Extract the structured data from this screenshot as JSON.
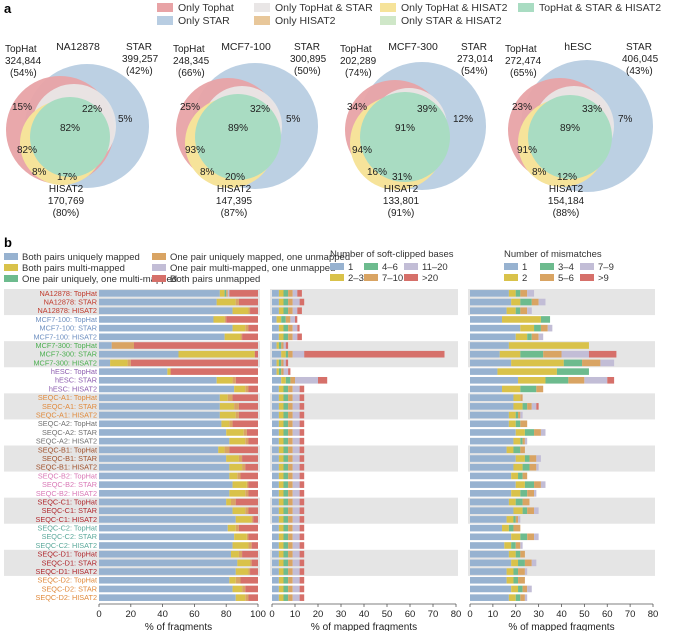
{
  "panels": {
    "a": "a",
    "b": "b"
  },
  "colors": {
    "tophat": "#e8a3a6",
    "star": "#b8cde2",
    "hisat2": "#f6e39a",
    "tophat_star": "#e9e6e6",
    "tophat_hisat2": "#e8c79a",
    "star_hisat2": "#cfe7c8",
    "all": "#a9dcc2",
    "uniq": "#97b2d0",
    "multi": "#d9c24a",
    "one_uniq_multi": "#6dbb8e",
    "uniq_unmapped": "#d9a463",
    "multi_unmapped": "#c2bdd6",
    "both_unmapped": "#d6706a",
    "bin1": "#97b2d0",
    "bin2": "#d9c24a",
    "bin3": "#6dbb8e",
    "bin4": "#d9a463",
    "bin5": "#c2bdd6",
    "bin6": "#d6706a",
    "row_shade": "#e5e5e5"
  },
  "legend_a": [
    "Only Tophat",
    "Only TopHat & STAR",
    "Only TopHat & HISAT2",
    "TopHat & STAR & HISAT2",
    "Only STAR",
    "Only HISAT2",
    "Only STAR & HISAT2"
  ],
  "chart_data": [
    {
      "type": "venn",
      "title": "NA12878",
      "tophat": {
        "label": "TopHat",
        "count": "324,844",
        "pct": "(54%)"
      },
      "star": {
        "label": "STAR",
        "count": "399,257",
        "pct": "(42%)"
      },
      "hisat2": {
        "label": "HISAT2",
        "count": "170,769",
        "pct": "(80%)"
      },
      "region_labels": {
        "tophat_only": "15%",
        "tophat_star": "22%",
        "star_only": "5%",
        "all": "82%",
        "tophat_hisat2": "82%",
        "hisat2_only": "8%",
        "star_hisat2": "17%"
      }
    },
    {
      "type": "venn",
      "title": "MCF7-100",
      "tophat": {
        "label": "TopHat",
        "count": "248,345",
        "pct": "(66%)"
      },
      "star": {
        "label": "STAR",
        "count": "300,895",
        "pct": "(50%)"
      },
      "hisat2": {
        "label": "HISAT2",
        "count": "147,395",
        "pct": "(87%)"
      },
      "region_labels": {
        "tophat_only": "25%",
        "tophat_star": "32%",
        "star_only": "5%",
        "all": "89%",
        "tophat_hisat2": "93%",
        "hisat2_only": "8%",
        "star_hisat2": "20%"
      }
    },
    {
      "type": "venn",
      "title": "MCF7-300",
      "tophat": {
        "label": "TopHat",
        "count": "202,289",
        "pct": "(74%)"
      },
      "star": {
        "label": "STAR",
        "count": "273,014",
        "pct": "(54%)"
      },
      "hisat2": {
        "label": "HISAT2",
        "count": "133,801",
        "pct": "(91%)"
      },
      "region_labels": {
        "tophat_only": "34%",
        "tophat_star": "39%",
        "star_only": "12%",
        "all": "91%",
        "tophat_hisat2": "94%",
        "hisat2_only": "16%",
        "star_hisat2": "31%"
      }
    },
    {
      "type": "venn",
      "title": "hESC",
      "tophat": {
        "label": "TopHat",
        "count": "272,474",
        "pct": "(65%)"
      },
      "star": {
        "label": "STAR",
        "count": "406,045",
        "pct": "(43%)"
      },
      "hisat2": {
        "label": "HISAT2",
        "count": "154,184",
        "pct": "(88%)"
      },
      "region_labels": {
        "tophat_only": "23%",
        "tophat_star": "33%",
        "star_only": "7%",
        "all": "89%",
        "tophat_hisat2": "91%",
        "hisat2_only": "8%",
        "star_hisat2": "12%"
      }
    },
    {
      "type": "bar",
      "stacked": true,
      "orientation": "horizontal",
      "xlabel": "% of fragments",
      "xlim": [
        0,
        100
      ],
      "xticks": [
        "0",
        "20",
        "40",
        "60",
        "80",
        "100"
      ],
      "legend": [
        "Both pairs uniquely mapped",
        "Both pairs multi-mapped",
        "One pair uniquely, one multi-mapped",
        "One pair uniquely mapped, one unmapped",
        "One pair multi-mapped, one unmapped",
        "Both pairs unmapped"
      ],
      "categories": [
        "NA12878: TopHat",
        "NA12878: STAR",
        "NA12878: HISAT2",
        "MCF7-100: TopHat",
        "MCF7-100: STAR",
        "MCF7-100: HISAT2",
        "MCF7-300: TopHat",
        "MCF7-300: STAR",
        "MCF7-300: HISAT2",
        "hESC: TopHat",
        "hESC: STAR",
        "hESC: HISAT2",
        "SEQC-A1: TopHat",
        "SEQC-A1: STAR",
        "SEQC-A1: HISAT2",
        "SEQC-A2: TopHat",
        "SEQC-A2: STAR",
        "SEQC-A2: HISAT2",
        "SEQC-B1: TopHat",
        "SEQC-B1: STAR",
        "SEQC-B1: HISAT2",
        "SEQC-B2: TopHat",
        "SEQC-B2: STAR",
        "SEQC-B2: HISAT2",
        "SEQC-C1: TopHat",
        "SEQC-C1: STAR",
        "SEQC-C1: HISAT2",
        "SEQC-C2: TopHat",
        "SEQC-C2: STAR",
        "SEQC-C2: HISAT2",
        "SEQC-D1: TopHat",
        "SEQC-D1: STAR",
        "SEQC-D1: HISAT2",
        "SEQC-D2: TopHat",
        "SEQC-D2: STAR",
        "SEQC-D2: HISAT2"
      ],
      "category_colors": [
        "#c0392b",
        "#c0392b",
        "#c0392b",
        "#6d8fc0",
        "#6d8fc0",
        "#6d8fc0",
        "#4caf50",
        "#4caf50",
        "#4caf50",
        "#8e5fb0",
        "#8e5fb0",
        "#8e5fb0",
        "#e08a3c",
        "#e08a3c",
        "#e08a3c",
        "#707070",
        "#707070",
        "#707070",
        "#a0522d",
        "#a0522d",
        "#a0522d",
        "#d978b6",
        "#d978b6",
        "#d978b6",
        "#b0282e",
        "#b0282e",
        "#b0282e",
        "#5aa89a",
        "#5aa89a",
        "#5aa89a",
        "#b0282e",
        "#b0282e",
        "#b0282e",
        "#e08a3c",
        "#e08a3c",
        "#e08a3c"
      ],
      "series": [
        {
          "name": "Both pairs uniquely mapped",
          "values": [
            76,
            74,
            84,
            72,
            84,
            79,
            8,
            50,
            7,
            43,
            74,
            85,
            76,
            76,
            76,
            77,
            80,
            82,
            75,
            80,
            82,
            82,
            84,
            82,
            80,
            84,
            86,
            81,
            85,
            84,
            83,
            87,
            86,
            82,
            84,
            86
          ]
        },
        {
          "name": "Both pairs multi-mapped",
          "values": [
            3,
            12,
            10,
            7,
            8,
            10,
            0,
            48,
            11,
            2,
            10,
            7,
            5,
            9,
            10,
            5,
            11,
            10,
            4,
            8,
            8,
            5,
            9,
            10,
            3,
            8,
            10,
            5,
            8,
            10,
            5,
            8,
            8,
            4,
            6,
            6
          ]
        },
        {
          "name": "One pair uniquely, one multi-mapped",
          "values": [
            1,
            0,
            0,
            0,
            0,
            0,
            0,
            0,
            0,
            0,
            0,
            0,
            0,
            0,
            0,
            0,
            0,
            0,
            0,
            0,
            0,
            0,
            0,
            0,
            0,
            0,
            0,
            0,
            0,
            0,
            0,
            0,
            0,
            0,
            0,
            0
          ]
        },
        {
          "name": "One pair uniquely mapped, one unmapped",
          "values": [
            1,
            2,
            1,
            1,
            2,
            1,
            14,
            0,
            2,
            0,
            2,
            2,
            3,
            3,
            2,
            2,
            2,
            2,
            3,
            2,
            2,
            2,
            1,
            2,
            3,
            2,
            1,
            2,
            1,
            2,
            2,
            1,
            1,
            3,
            2,
            2
          ]
        },
        {
          "name": "One pair multi-mapped, one unmapped",
          "values": [
            1,
            0,
            0,
            0,
            0,
            0,
            0,
            0,
            0,
            0,
            0,
            0,
            0,
            0,
            0,
            0,
            0,
            0,
            0,
            0,
            0,
            0,
            0,
            0,
            0,
            0,
            0,
            0,
            0,
            0,
            0,
            0,
            0,
            0,
            0,
            0
          ]
        },
        {
          "name": "Both pairs unmapped",
          "values": [
            18,
            12,
            5,
            20,
            6,
            10,
            78,
            2,
            80,
            55,
            14,
            6,
            16,
            12,
            12,
            16,
            7,
            6,
            18,
            10,
            8,
            11,
            6,
            6,
            14,
            6,
            3,
            12,
            6,
            4,
            10,
            4,
            5,
            11,
            8,
            6
          ]
        }
      ]
    },
    {
      "type": "bar",
      "stacked": true,
      "orientation": "horizontal",
      "title": "Number of soft-clipped bases",
      "xlabel": "% of mapped fragments",
      "xlim": [
        0,
        80
      ],
      "xticks": [
        "0",
        "10",
        "20",
        "30",
        "40",
        "50",
        "60",
        "70",
        "80"
      ],
      "legend": [
        "1",
        "2–3",
        "4–6",
        "7–10",
        "11–20",
        ">20"
      ],
      "series": [
        {
          "name": "1",
          "values": [
            3,
            3,
            3,
            2,
            3,
            3,
            2,
            4,
            2,
            2,
            4,
            3,
            3,
            3,
            3,
            3,
            3,
            3,
            3,
            3,
            3,
            3,
            3,
            3,
            3,
            3,
            3,
            3,
            3,
            3,
            3,
            3,
            3,
            3,
            3,
            3
          ]
        },
        {
          "name": "2–3",
          "values": [
            2,
            2,
            2,
            2,
            2,
            2,
            1,
            2,
            1,
            1,
            2,
            2,
            2,
            2,
            2,
            2,
            2,
            2,
            2,
            2,
            2,
            2,
            2,
            2,
            2,
            2,
            2,
            2,
            2,
            2,
            2,
            2,
            2,
            2,
            2,
            2
          ]
        },
        {
          "name": "4–6",
          "values": [
            2,
            2,
            2,
            2,
            2,
            2,
            1,
            1,
            1,
            1,
            2,
            2,
            2,
            2,
            2,
            2,
            2,
            2,
            2,
            2,
            2,
            2,
            2,
            2,
            2,
            2,
            2,
            2,
            2,
            2,
            2,
            2,
            2,
            2,
            2,
            2
          ]
        },
        {
          "name": "7–10",
          "values": [
            2,
            2,
            2,
            2,
            2,
            2,
            1,
            2,
            1,
            1,
            2,
            2,
            2,
            2,
            2,
            2,
            2,
            2,
            2,
            2,
            2,
            2,
            2,
            2,
            2,
            2,
            2,
            2,
            2,
            2,
            2,
            2,
            2,
            2,
            2,
            2
          ]
        },
        {
          "name": "11–20",
          "values": [
            2,
            3,
            2,
            2,
            2,
            2,
            1,
            5,
            1,
            2,
            10,
            3,
            3,
            3,
            3,
            3,
            3,
            3,
            3,
            3,
            3,
            3,
            3,
            3,
            3,
            3,
            3,
            3,
            3,
            3,
            3,
            3,
            3,
            3,
            3,
            3
          ]
        },
        {
          "name": ">20",
          "values": [
            2,
            2,
            2,
            1,
            1,
            2,
            1,
            61,
            1,
            1,
            4,
            2,
            2,
            2,
            2,
            2,
            2,
            2,
            2,
            2,
            2,
            2,
            2,
            2,
            2,
            2,
            2,
            2,
            2,
            2,
            2,
            2,
            2,
            2,
            2,
            2
          ]
        }
      ]
    },
    {
      "type": "bar",
      "stacked": true,
      "orientation": "horizontal",
      "title": "Number of mismatches",
      "xlabel": "% of mapped fragments",
      "xlim": [
        0,
        80
      ],
      "xticks": [
        "0",
        "10",
        "20",
        "30",
        "40",
        "50",
        "60",
        "70",
        "80"
      ],
      "legend": [
        "1",
        "2",
        "3–4",
        "5–6",
        "7–9",
        ">9"
      ],
      "series": [
        {
          "name": "1",
          "values": [
            17,
            18,
            16,
            14,
            22,
            20,
            17,
            13,
            18,
            12,
            21,
            14,
            19,
            19,
            17,
            17,
            20,
            19,
            16,
            20,
            19,
            18,
            20,
            18,
            17,
            19,
            16,
            14,
            18,
            15,
            17,
            18,
            16,
            16,
            18,
            17
          ]
        },
        {
          "name": "2",
          "values": [
            3,
            4,
            4,
            17,
            6,
            5,
            35,
            9,
            23,
            26,
            12,
            8,
            3,
            4,
            3,
            3,
            4,
            3,
            3,
            4,
            4,
            3,
            4,
            4,
            3,
            4,
            3,
            3,
            4,
            3,
            3,
            3,
            3,
            3,
            3,
            3
          ]
        },
        {
          "name": "3–4",
          "values": [
            2,
            5,
            2,
            4,
            3,
            2,
            0,
            10,
            8,
            14,
            10,
            7,
            0,
            2,
            1,
            2,
            4,
            1,
            3,
            2,
            3,
            2,
            4,
            3,
            3,
            2,
            1,
            2,
            3,
            2,
            2,
            3,
            2,
            2,
            2,
            2
          ]
        },
        {
          "name": "5–6",
          "values": [
            3,
            3,
            3,
            0,
            3,
            3,
            0,
            8,
            8,
            0,
            7,
            3,
            1,
            2,
            1,
            3,
            3,
            1,
            2,
            3,
            3,
            2,
            3,
            3,
            3,
            3,
            1,
            3,
            3,
            2,
            2,
            3,
            3,
            3,
            2,
            2
          ]
        },
        {
          "name": "7–9",
          "values": [
            3,
            3,
            2,
            0,
            2,
            2,
            0,
            12,
            6,
            0,
            10,
            0,
            0,
            2,
            1,
            0,
            2,
            1,
            0,
            2,
            1,
            0,
            2,
            1,
            0,
            2,
            1,
            0,
            2,
            1,
            0,
            2,
            1,
            0,
            2,
            1
          ]
        },
        {
          "name": ">9",
          "values": [
            0,
            0,
            0,
            0,
            0,
            0,
            0,
            12,
            0,
            0,
            3,
            0,
            0,
            1,
            0,
            0,
            0,
            0,
            0,
            0,
            0,
            0,
            0,
            0,
            0,
            0,
            0,
            0,
            0,
            0,
            0,
            0,
            0,
            0,
            0,
            0
          ]
        }
      ]
    }
  ]
}
